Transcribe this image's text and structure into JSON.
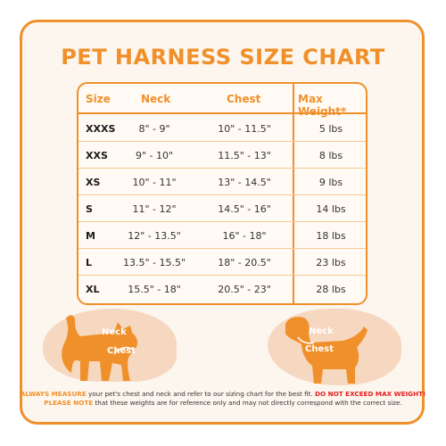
{
  "title": "PET HARNESS SIZE CHART",
  "headers": {
    "size": "Size",
    "neck": "Neck",
    "chest": "Chest",
    "max_weight": "Max Weight*"
  },
  "rows": [
    {
      "size": "XXXS",
      "neck": "8\" - 9\"",
      "chest": "10\" - 11.5\"",
      "weight": "5 lbs"
    },
    {
      "size": "XXS",
      "neck": "9\" - 10\"",
      "chest": "11.5\" - 13\"",
      "weight": "8 lbs"
    },
    {
      "size": "XS",
      "neck": "10\" - 11\"",
      "chest": "13\" - 14.5\"",
      "weight": "9 lbs"
    },
    {
      "size": "S",
      "neck": "11\" - 12\"",
      "chest": "14.5\" - 16\"",
      "weight": "14 lbs"
    },
    {
      "size": "M",
      "neck": "12\" - 13.5\"",
      "chest": "16\" - 18\"",
      "weight": "18 lbs"
    },
    {
      "size": "L",
      "neck": "13.5\" - 15.5\"",
      "chest": "18\" - 20.5\"",
      "weight": "23 lbs"
    },
    {
      "size": "XL",
      "neck": "15.5\" - 18\"",
      "chest": "20.5\" - 23\"",
      "weight": "28 lbs"
    }
  ],
  "cat_labels": {
    "neck": "Neck",
    "chest": "Chest"
  },
  "dog_labels": {
    "neck": "Neck",
    "chest": "Chest"
  },
  "footer": {
    "always_measure": "ALWAYS MEASURE",
    "line1_text": " your pet's chest and neck and refer  to our sizing chart for the best fit. ",
    "do_not_exceed": "DO NOT EXCEED MAX WEIGHT!",
    "please_note": "PLEASE NOTE",
    "line2_text": " that these weights are for reference only and may not directly correspond with the correct size."
  },
  "colors": {
    "accent": "#f0902a",
    "warning": "#e02020",
    "background": "#fdf6ee"
  }
}
